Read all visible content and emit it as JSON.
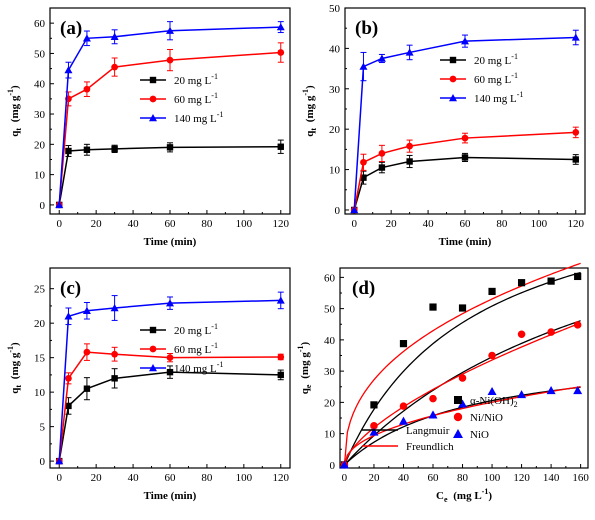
{
  "chart_data": [
    {
      "type": "line",
      "panel_label": "(a)",
      "xlabel": "Time (min)",
      "ylabel": "qt (mg g-1)",
      "ylabel_main": "q",
      "ylabel_sub": "t",
      "ylabel_units": "(mg g",
      "ylabel_sup": "-1",
      "ylabel_close": ")",
      "xlim": [
        -5,
        125
      ],
      "ylim": [
        -3,
        65
      ],
      "xticks": [
        0,
        20,
        40,
        60,
        80,
        100,
        120
      ],
      "yticks": [
        0,
        10,
        20,
        30,
        40,
        50,
        60
      ],
      "legend_position": "center-right",
      "x": [
        0,
        5,
        15,
        30,
        60,
        120
      ],
      "series": [
        {
          "name": "20 mg L-1",
          "name_text": "20 mg L",
          "name_sup": "-1",
          "color": "#000000",
          "marker": "square",
          "values": [
            0,
            17.8,
            18.2,
            18.5,
            19.0,
            19.2
          ],
          "errors": [
            0,
            1.8,
            1.8,
            1.2,
            1.5,
            2.2
          ]
        },
        {
          "name": "60 mg L-1",
          "name_text": "60 mg L",
          "name_sup": "-1",
          "color": "#ff0000",
          "marker": "circle",
          "values": [
            0,
            35.0,
            38.2,
            45.5,
            47.8,
            50.3
          ],
          "errors": [
            0,
            2.3,
            2.4,
            3.0,
            3.5,
            3.2
          ]
        },
        {
          "name": "140 mg L-1",
          "name_text": "140 mg L",
          "name_sup": "-1",
          "color": "#0000ff",
          "marker": "triangle",
          "values": [
            0,
            44.5,
            55.0,
            55.5,
            57.5,
            58.7
          ],
          "errors": [
            0,
            2.6,
            2.4,
            2.3,
            3.0,
            1.8
          ]
        }
      ]
    },
    {
      "type": "line",
      "panel_label": "(b)",
      "xlabel": "Time (min)",
      "ylabel": "qt (mg g-1)",
      "ylabel_main": "q",
      "ylabel_sub": "t",
      "ylabel_units": "(mg g",
      "ylabel_sup": "-1",
      "ylabel_close": ")",
      "xlim": [
        -5,
        125
      ],
      "ylim": [
        -1,
        50
      ],
      "xticks": [
        0,
        20,
        40,
        60,
        80,
        100,
        120
      ],
      "yticks": [
        0,
        10,
        20,
        30,
        40,
        50
      ],
      "legend_position": "center-right",
      "x": [
        0,
        5,
        15,
        30,
        60,
        120
      ],
      "series": [
        {
          "name": "20 mg L-1",
          "name_text": "20 mg L",
          "name_sup": "-1",
          "color": "#000000",
          "marker": "square",
          "values": [
            0,
            8.0,
            10.5,
            12.0,
            13.0,
            12.5
          ],
          "errors": [
            0,
            1.6,
            1.3,
            1.5,
            1.0,
            1.2
          ]
        },
        {
          "name": "60 mg L-1",
          "name_text": "60 mg L",
          "name_sup": "-1",
          "color": "#ff0000",
          "marker": "circle",
          "values": [
            0,
            11.8,
            14.0,
            15.8,
            17.8,
            19.2
          ],
          "errors": [
            0,
            2.0,
            2.0,
            1.5,
            1.2,
            1.3
          ]
        },
        {
          "name": "140 mg L-1",
          "name_text": "140 mg L",
          "name_sup": "-1",
          "color": "#0000ff",
          "marker": "triangle",
          "values": [
            0,
            35.5,
            37.5,
            39.0,
            41.8,
            42.7
          ],
          "errors": [
            0,
            3.5,
            1.0,
            1.8,
            1.5,
            1.8
          ]
        }
      ]
    },
    {
      "type": "line",
      "panel_label": "(c)",
      "xlabel": "Time (min)",
      "ylabel": "qt (mg g-1)",
      "ylabel_main": "q",
      "ylabel_sub": "t",
      "ylabel_units": "(mg g",
      "ylabel_sup": "-1",
      "ylabel_close": ")",
      "xlim": [
        -5,
        125
      ],
      "ylim": [
        -1,
        28
      ],
      "xticks": [
        0,
        20,
        40,
        60,
        80,
        100,
        120
      ],
      "yticks": [
        0,
        5,
        10,
        15,
        20,
        25
      ],
      "legend_position": "center-right",
      "x": [
        0,
        5,
        15,
        30,
        60,
        120
      ],
      "series": [
        {
          "name": "20 mg L-1",
          "name_text": "20 mg L",
          "name_sup": "-1",
          "color": "#000000",
          "marker": "square",
          "values": [
            0,
            8.0,
            10.5,
            12.0,
            12.9,
            12.5
          ],
          "errors": [
            0,
            1.2,
            1.6,
            1.4,
            0.9,
            0.7
          ]
        },
        {
          "name": "60 mg L-1",
          "name_text": "60 mg L",
          "name_sup": "-1",
          "color": "#ff0000",
          "marker": "circle",
          "values": [
            0,
            12.0,
            15.8,
            15.5,
            15.0,
            15.1
          ],
          "errors": [
            0,
            0.8,
            1.2,
            1.0,
            0.6,
            0.4
          ]
        },
        {
          "name": "140 mg L-1",
          "name_text": "140 mg L",
          "name_sup": "-1",
          "color": "#0000ff",
          "marker": "triangle",
          "values": [
            0,
            21.0,
            21.8,
            22.2,
            22.9,
            23.3
          ],
          "errors": [
            0,
            1.2,
            1.2,
            1.8,
            0.9,
            1.2
          ]
        }
      ]
    },
    {
      "type": "scatter",
      "panel_label": "(d)",
      "xlabel": "Ce (mg L-1)",
      "xlabel_main": "C",
      "xlabel_sub": "e",
      "xlabel_units": "(mg L",
      "xlabel_sup": "-1",
      "xlabel_close": ")",
      "ylabel": "qe (mg g-1)",
      "ylabel_main": "q",
      "ylabel_sub": "e",
      "ylabel_units": "(mg g",
      "ylabel_sup": "-1",
      "ylabel_close": ")",
      "xlim": [
        -3,
        165
      ],
      "ylim": [
        -1,
        63
      ],
      "xticks": [
        0,
        20,
        40,
        60,
        80,
        100,
        120,
        140,
        160
      ],
      "yticks": [
        0,
        10,
        20,
        30,
        40,
        50,
        60
      ],
      "legend_position": "bottom-right",
      "series": [
        {
          "name": "α-Ni(OH)2",
          "name_text": "α-Ni(OH)",
          "name_sub": "2",
          "color": "#000000",
          "marker": "square",
          "x": [
            0,
            20,
            40,
            60,
            80,
            100,
            120,
            140,
            158
          ],
          "values": [
            0,
            19.2,
            38.8,
            50.5,
            50.2,
            55.5,
            58.3,
            58.8,
            60.3
          ]
        },
        {
          "name": "Ni/NiO",
          "name_text": "Ni/NiO",
          "color": "#ff0000",
          "marker": "circle",
          "x": [
            0,
            20,
            40,
            60,
            80,
            100,
            120,
            140,
            158
          ],
          "values": [
            0,
            12.5,
            18.8,
            21.2,
            27.8,
            35.0,
            41.8,
            42.5,
            44.8
          ]
        },
        {
          "name": "NiO",
          "name_text": "NiO",
          "color": "#0000ff",
          "marker": "triangle",
          "x": [
            0,
            20,
            40,
            60,
            80,
            100,
            120,
            140,
            158
          ],
          "values": [
            0,
            10.5,
            14.0,
            16.0,
            19.5,
            23.5,
            22.5,
            23.8,
            23.8
          ]
        }
      ],
      "fits": [
        {
          "name": "Langmuir",
          "color": "#000000",
          "model": "langmuir",
          "params": [
            [
              95,
              0.0115
            ],
            [
              105,
              0.0049
            ],
            [
              38,
              0.0118
            ]
          ]
        },
        {
          "name": "Freundlich",
          "color": "#ff0000",
          "model": "freundlich",
          "params": [
            [
              7.85,
              0.415
            ],
            [
              1.72,
              0.645
            ],
            [
              2.28,
              0.472
            ]
          ]
        }
      ]
    }
  ]
}
